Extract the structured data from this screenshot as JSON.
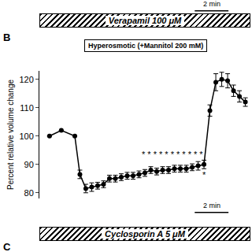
{
  "chart_data": {
    "type": "line",
    "ylabel": "Percent relative volume change",
    "x": [
      0,
      0.7,
      1.5,
      1.8,
      2.15,
      2.5,
      2.85,
      3.2,
      3.55,
      3.9,
      4.25,
      4.6,
      4.95,
      5.3,
      5.65,
      6.0,
      6.35,
      6.7,
      7.05,
      7.4,
      7.75,
      8.1,
      8.45,
      8.8,
      9.15,
      9.5,
      9.85,
      10.2,
      10.55,
      10.9,
      11.25,
      11.6
    ],
    "values": [
      100,
      102,
      100,
      86.5,
      81.5,
      82,
      82.5,
      83,
      85,
      85,
      85.5,
      86,
      86,
      86.5,
      87,
      88,
      87.5,
      88,
      88,
      88.5,
      88.5,
      88.5,
      89,
      89.5,
      90,
      109,
      119,
      120,
      119.5,
      116,
      114,
      112
    ],
    "errors": [
      0,
      0,
      0,
      1.5,
      1.5,
      1.5,
      1.2,
      1.2,
      1.2,
      1.2,
      1.2,
      1.2,
      1.2,
      1.2,
      1.2,
      1.2,
      1.2,
      1.2,
      1.2,
      1.2,
      1.2,
      1.2,
      1.2,
      1.5,
      1.5,
      2,
      3,
      2.5,
      2.5,
      2,
      2,
      1.5
    ],
    "color": "#000000",
    "marker": "circle",
    "line_style": "solid",
    "xlim": [
      -0.6,
      11.9
    ],
    "ylim": [
      78,
      123
    ],
    "yticks": [
      80,
      90,
      100,
      110,
      120
    ],
    "grid": false,
    "tick_labels": "y",
    "annotations": [
      {
        "text": "* * * * * * * * * * *",
        "x": 7.3,
        "y": 93.5
      },
      {
        "text": "*",
        "x": 9.15,
        "y": 86.3
      }
    ]
  },
  "figure": {
    "panel_labels": [
      "B",
      "C"
    ],
    "treatment_bars": [
      "Verapamil 100 μM",
      "Cyclosporin A 5 μM"
    ],
    "condition": "Hyperosmotic (+Mannitol 200 mM)",
    "scale_bar": {
      "label": "2 min",
      "length": 2
    }
  }
}
